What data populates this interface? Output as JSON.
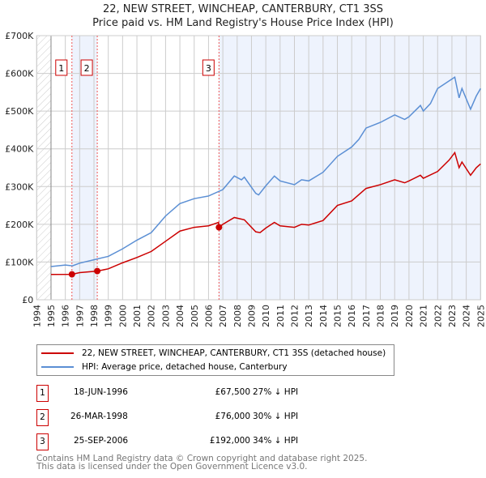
{
  "chart_data": {
    "type": "line",
    "title": "22, NEW STREET, WINCHEAP, CANTERBURY, CT1 3SS",
    "subtitle": "Price paid vs. HM Land Registry's House Price Index (HPI)",
    "xlim": [
      1994,
      2025
    ],
    "ylim": [
      0,
      700000
    ],
    "y_ticks": [
      "£0",
      "£100K",
      "£200K",
      "£300K",
      "£400K",
      "£500K",
      "£600K",
      "£700K"
    ],
    "x_ticks": [
      "1994",
      "1995",
      "1996",
      "1997",
      "1998",
      "1999",
      "2000",
      "2001",
      "2002",
      "2003",
      "2004",
      "2005",
      "2006",
      "2007",
      "2008",
      "2009",
      "2010",
      "2011",
      "2012",
      "2013",
      "2014",
      "2015",
      "2016",
      "2017",
      "2018",
      "2019",
      "2020",
      "2021",
      "2022",
      "2023",
      "2024",
      "2025"
    ],
    "grid": true,
    "series": [
      {
        "name": "22, NEW STREET, WINCHEAP, CANTERBURY, CT1 3SS (detached house)",
        "color": "#cc0000",
        "x": [
          1995,
          1996.46,
          1997,
          1998.23,
          1999,
          2000,
          2001,
          2002,
          2003,
          2004,
          2005,
          2006,
          2006.7,
          2006.73,
          2007,
          2007.8,
          2008.5,
          2009.3,
          2009.6,
          2010,
          2010.6,
          2011,
          2012,
          2012.5,
          2013,
          2014,
          2015,
          2016,
          2017,
          2018,
          2019,
          2019.7,
          2020,
          2020.8,
          2021,
          2022,
          2022.8,
          2023.2,
          2023.5,
          2023.7,
          2024.3,
          2024.7,
          2025
        ],
        "y": [
          67000,
          67500,
          72000,
          76000,
          82000,
          98000,
          112000,
          128000,
          155000,
          182000,
          192000,
          196000,
          205000,
          192000,
          200000,
          218000,
          212000,
          180000,
          178000,
          190000,
          205000,
          196000,
          192000,
          200000,
          198000,
          210000,
          250000,
          262000,
          295000,
          305000,
          318000,
          310000,
          315000,
          330000,
          322000,
          340000,
          370000,
          390000,
          350000,
          365000,
          330000,
          350000,
          360000
        ]
      },
      {
        "name": "HPI: Average price, detached house, Canterbury",
        "color": "#5b8fd4",
        "x": [
          1995,
          1996,
          1996.5,
          1997,
          1998,
          1999,
          2000,
          2001,
          2002,
          2003,
          2004,
          2005,
          2006,
          2007,
          2007.8,
          2008.3,
          2008.5,
          2009.3,
          2009.5,
          2010,
          2010.6,
          2011,
          2012,
          2012.5,
          2013,
          2014,
          2015,
          2016,
          2016.5,
          2017,
          2018,
          2019,
          2019.7,
          2020,
          2020.8,
          2021,
          2021.5,
          2022,
          2022.8,
          2023.2,
          2023.5,
          2023.7,
          2024.3,
          2024.7,
          2025
        ],
        "y": [
          88000,
          92000,
          90000,
          97000,
          106000,
          115000,
          135000,
          158000,
          178000,
          222000,
          255000,
          268000,
          275000,
          292000,
          328000,
          318000,
          325000,
          282000,
          278000,
          302000,
          328000,
          315000,
          305000,
          318000,
          315000,
          338000,
          380000,
          405000,
          425000,
          455000,
          470000,
          490000,
          478000,
          485000,
          515000,
          500000,
          520000,
          560000,
          580000,
          590000,
          535000,
          560000,
          505000,
          540000,
          560000
        ]
      }
    ],
    "sales": [
      {
        "label": "1",
        "x": 1996.46,
        "price": 67500,
        "date": "18-JUN-1996",
        "price_text": "£67,500",
        "hpi": "27% ↓ HPI"
      },
      {
        "label": "2",
        "x": 1998.23,
        "price": 76000,
        "date": "26-MAR-1998",
        "price_text": "£76,000",
        "hpi": "30% ↓ HPI"
      },
      {
        "label": "3",
        "x": 2006.73,
        "price": 192000,
        "date": "25-SEP-2006",
        "price_text": "£192,000",
        "hpi": "34% ↓ HPI"
      }
    ]
  },
  "footer": {
    "line1": "Contains HM Land Registry data © Crown copyright and database right 2025.",
    "line2": "This data is licensed under the Open Government Licence v3.0."
  }
}
